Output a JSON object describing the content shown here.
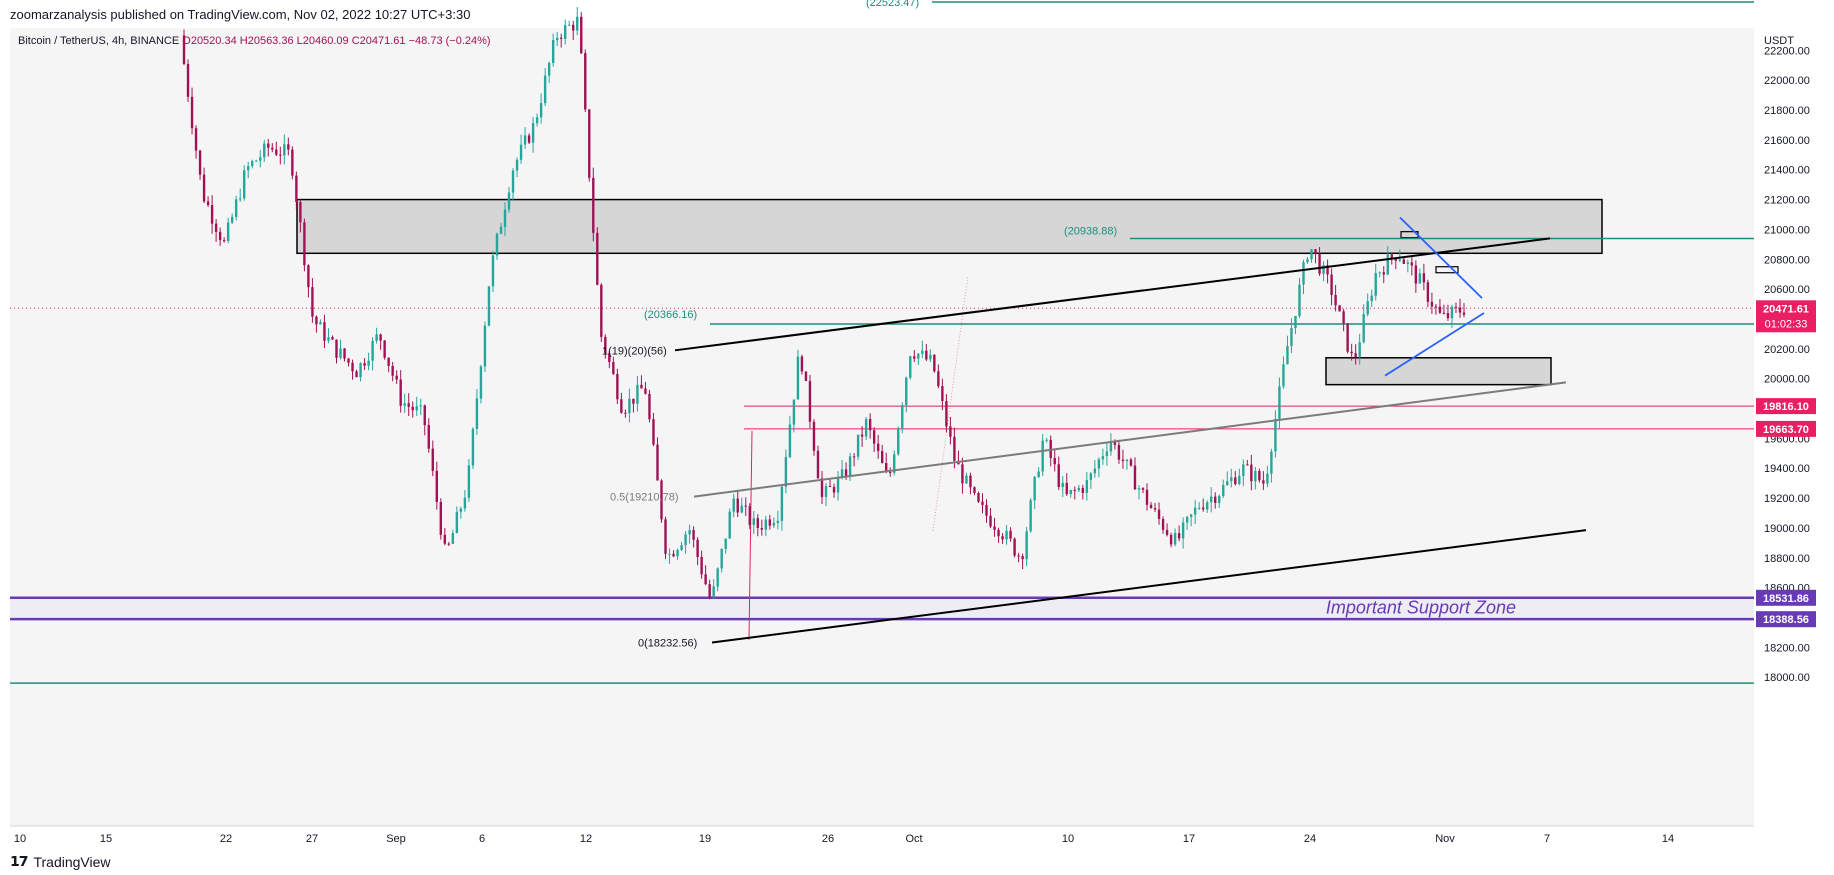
{
  "header": {
    "publisher_line": "zoomarzanalysis published on TradingView.com, Nov 02, 2022 10:27 UTC+3:30"
  },
  "footer": {
    "brand": "TradingView",
    "logo_icon": "tradingview-logo-icon"
  },
  "colors": {
    "up": "#26a69a",
    "down": "#a31155",
    "teal_line": "#1e8c7e",
    "red_line": "#e91e63",
    "purple": "#673ab7",
    "blue": "#2962ff",
    "zone_fill": "#d9d9d9",
    "price_tag": "#e91e63"
  },
  "chart_data": {
    "type": "candlestick",
    "symbol_line": {
      "symbol": "Bitcoin / TetherUS, 4h, BINANCE",
      "open": "O20520.34",
      "high": "H20563.36",
      "low": "L20460.09",
      "close": "C20471.61",
      "change": "−48.73 (−0.24%)"
    },
    "y_axis": {
      "unit": "USDT",
      "ylim": [
        17900,
        22420
      ],
      "ticks": [
        "22200.00",
        "22000.00",
        "21800.00",
        "21600.00",
        "21400.00",
        "21200.00",
        "21000.00",
        "20800.00",
        "20600.00",
        "20400.00",
        "20200.00",
        "20000.00",
        "19800.00",
        "19600.00",
        "19400.00",
        "19200.00",
        "19000.00",
        "18800.00",
        "18600.00",
        "18400.00",
        "18200.00",
        "18000.00"
      ]
    },
    "x_axis": {
      "ticks": [
        "10",
        "15",
        "22",
        "27",
        "Sep",
        "6",
        "12",
        "19",
        "26",
        "Oct",
        "10",
        "17",
        "24",
        "Nov",
        "7",
        "14"
      ]
    },
    "last_price": {
      "value": "20471.61",
      "countdown": "01:02:33"
    },
    "price_labels": [
      {
        "value": "19816.10",
        "color": "#e91e63"
      },
      {
        "value": "19663.70",
        "color": "#e91e63"
      },
      {
        "value": "18531.86",
        "color": "#673ab7"
      },
      {
        "value": "18388.56",
        "color": "#673ab7"
      }
    ],
    "annotations": {
      "level_top": "(22523.47)",
      "level_20938": "(20938.88)",
      "level_20366": "(20366.16)",
      "fib_1": "1(19)(20)(56)",
      "fib_05": "0.5(19210.78)",
      "fib_0": "0(18232.56)",
      "support_zone": "Important Support Zone"
    },
    "horizontal_levels": [
      22523.47,
      20938.88,
      20366.16,
      19816.1,
      19663.7,
      18531.86,
      18388.56,
      17960
    ],
    "resistance_zone": {
      "from": 20840,
      "to": 21200
    },
    "price_path": [
      {
        "t": "Aug 19",
        "p": 22300
      },
      {
        "t": "Aug 20",
        "p": 21250
      },
      {
        "t": "Aug 21",
        "p": 20900
      },
      {
        "t": "Aug 23",
        "p": 21400
      },
      {
        "t": "Aug 25",
        "p": 21550
      },
      {
        "t": "Aug 26",
        "p": 21500
      },
      {
        "t": "Aug 27",
        "p": 20400
      },
      {
        "t": "Aug 29",
        "p": 20200
      },
      {
        "t": "Aug 31",
        "p": 20050
      },
      {
        "t": "Sep 01",
        "p": 20300
      },
      {
        "t": "Sep 03",
        "p": 19850
      },
      {
        "t": "Sep 05",
        "p": 19750
      },
      {
        "t": "Sep 06",
        "p": 18800
      },
      {
        "t": "Sep 08",
        "p": 19300
      },
      {
        "t": "Sep 09",
        "p": 20700
      },
      {
        "t": "Sep 10",
        "p": 21400
      },
      {
        "t": "Sep 11",
        "p": 21700
      },
      {
        "t": "Sep 12",
        "p": 22300
      },
      {
        "t": "Sep 13",
        "p": 22400
      },
      {
        "t": "Sep 14",
        "p": 20300
      },
      {
        "t": "Sep 16",
        "p": 19800
      },
      {
        "t": "Sep 18",
        "p": 19950
      },
      {
        "t": "Sep 19",
        "p": 18800
      },
      {
        "t": "Sep 20",
        "p": 19000
      },
      {
        "t": "Sep 22",
        "p": 18500
      },
      {
        "t": "Sep 23",
        "p": 19200
      },
      {
        "t": "Sep 25",
        "p": 19000
      },
      {
        "t": "Sep 27",
        "p": 19100
      },
      {
        "t": "Sep 28",
        "p": 20200
      },
      {
        "t": "Sep 29",
        "p": 19200
      },
      {
        "t": "Oct 01",
        "p": 19350
      },
      {
        "t": "Oct 02",
        "p": 19700
      },
      {
        "t": "Oct 04",
        "p": 19300
      },
      {
        "t": "Oct 05",
        "p": 20200
      },
      {
        "t": "Oct 07",
        "p": 20100
      },
      {
        "t": "Oct 08",
        "p": 19450
      },
      {
        "t": "Oct 10",
        "p": 19150
      },
      {
        "t": "Oct 12",
        "p": 19000
      },
      {
        "t": "Oct 13",
        "p": 18800
      },
      {
        "t": "Oct 14",
        "p": 19600
      },
      {
        "t": "Oct 15",
        "p": 19200
      },
      {
        "t": "Oct 17",
        "p": 19300
      },
      {
        "t": "Oct 18",
        "p": 19600
      },
      {
        "t": "Oct 19",
        "p": 19350
      },
      {
        "t": "Oct 20",
        "p": 19100
      },
      {
        "t": "Oct 21",
        "p": 18900
      },
      {
        "t": "Oct 22",
        "p": 19150
      },
      {
        "t": "Oct 23",
        "p": 19250
      },
      {
        "t": "Oct 24",
        "p": 19400
      },
      {
        "t": "Oct 25",
        "p": 19300
      },
      {
        "t": "Oct 25b",
        "p": 20200
      },
      {
        "t": "Oct 26",
        "p": 20900
      },
      {
        "t": "Oct 27",
        "p": 20600
      },
      {
        "t": "Oct 28",
        "p": 20100
      },
      {
        "t": "Oct 29",
        "p": 20700
      },
      {
        "t": "Oct 30",
        "p": 20850
      },
      {
        "t": "Oct 31",
        "p": 20650
      },
      {
        "t": "Nov 01",
        "p": 20400
      },
      {
        "t": "Nov 02",
        "p": 20472
      }
    ]
  }
}
